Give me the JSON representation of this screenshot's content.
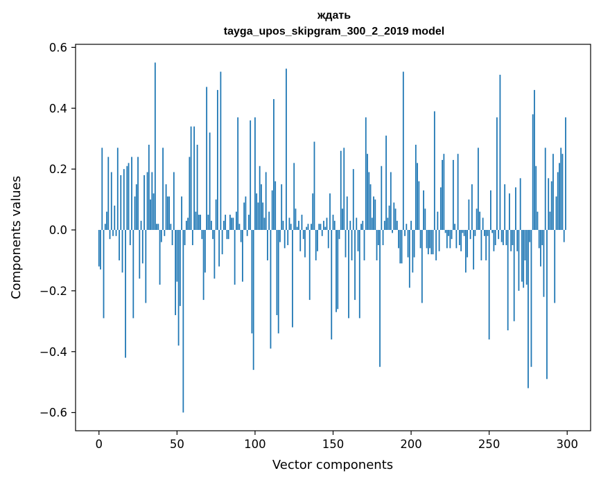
{
  "chart_data": {
    "type": "bar",
    "title_line1": "ждать",
    "title_line2": "tayga_upos_skipgram_300_2_2019 model",
    "xlabel": "Vector components",
    "ylabel": "Components values",
    "xlim": [
      -15,
      315
    ],
    "ylim": [
      -0.66,
      0.61
    ],
    "xticks": [
      0,
      50,
      100,
      150,
      200,
      250,
      300
    ],
    "yticks": [
      -0.6,
      -0.4,
      -0.2,
      0.0,
      0.2,
      0.4,
      0.6
    ],
    "ytick_labels": [
      "−0.6",
      "−0.4",
      "−0.2",
      "0.0",
      "0.2",
      "0.4",
      "0.6"
    ],
    "bar_color": "#1f77b4",
    "values": [
      -0.12,
      -0.13,
      0.27,
      -0.29,
      0.02,
      0.06,
      0.24,
      -0.03,
      0.19,
      -0.02,
      0.08,
      -0.02,
      0.27,
      -0.1,
      0.18,
      -0.14,
      0.2,
      -0.42,
      0.21,
      0.22,
      -0.05,
      0.24,
      -0.29,
      0.11,
      0.15,
      0.24,
      -0.16,
      0.03,
      -0.11,
      0.18,
      -0.24,
      0.19,
      0.28,
      0.1,
      0.19,
      0.12,
      0.55,
      0.02,
      0.02,
      -0.18,
      -0.04,
      0.27,
      -0.02,
      0.15,
      0.11,
      0.11,
      0.02,
      -0.05,
      0.19,
      -0.28,
      -0.17,
      -0.38,
      -0.25,
      0.11,
      -0.6,
      -0.05,
      0.03,
      0.04,
      0.24,
      0.34,
      -0.05,
      0.34,
      0.06,
      0.28,
      0.05,
      0.05,
      -0.03,
      -0.23,
      -0.14,
      0.47,
      0.05,
      0.32,
      0.03,
      -0.03,
      -0.16,
      0.1,
      0.46,
      -0.12,
      0.52,
      -0.08,
      0.03,
      0.05,
      -0.03,
      -0.03,
      0.05,
      0.04,
      0.04,
      -0.18,
      0.06,
      0.37,
      0.02,
      -0.04,
      -0.17,
      0.09,
      0.11,
      -0.02,
      0.05,
      0.36,
      -0.34,
      -0.46,
      0.37,
      0.12,
      0.09,
      0.21,
      0.15,
      0.09,
      0.04,
      0.19,
      -0.1,
      0.06,
      -0.39,
      0.13,
      0.43,
      0.16,
      -0.28,
      -0.34,
      -0.04,
      0.15,
      0.03,
      -0.06,
      0.53,
      -0.05,
      0.04,
      0.02,
      -0.32,
      0.22,
      0.07,
      0.01,
      0.03,
      -0.07,
      0.05,
      -0.03,
      -0.09,
      0.01,
      0.02,
      -0.23,
      0.02,
      0.12,
      0.29,
      -0.1,
      -0.07,
      0.02,
      0.02,
      -0.02,
      0.03,
      0.01,
      0.04,
      -0.06,
      0.12,
      -0.36,
      0.05,
      0.03,
      -0.27,
      -0.26,
      -0.03,
      0.26,
      0.07,
      0.27,
      -0.09,
      0.11,
      -0.29,
      0.03,
      -0.1,
      0.2,
      -0.23,
      0.04,
      -0.07,
      -0.29,
      0.02,
      0.03,
      -0.1,
      0.37,
      0.25,
      0.19,
      0.15,
      0.04,
      0.11,
      0.1,
      -0.1,
      -0.05,
      -0.45,
      0.21,
      -0.05,
      0.03,
      0.31,
      0.04,
      0.08,
      0.19,
      -0.01,
      0.09,
      0.07,
      0.03,
      -0.06,
      -0.11,
      -0.11,
      0.52,
      -0.02,
      0.02,
      -0.09,
      -0.19,
      0.03,
      -0.14,
      -0.09,
      0.28,
      0.22,
      0.16,
      -0.06,
      -0.24,
      0.13,
      0.07,
      -0.06,
      -0.08,
      -0.06,
      -0.08,
      -0.08,
      0.39,
      -0.1,
      0.06,
      -0.07,
      0.14,
      0.23,
      0.25,
      -0.01,
      -0.06,
      -0.02,
      -0.06,
      -0.03,
      0.23,
      0.02,
      -0.06,
      0.25,
      -0.05,
      -0.07,
      -0.01,
      -0.02,
      -0.14,
      -0.09,
      0.1,
      -0.03,
      0.15,
      -0.13,
      -0.02,
      0.07,
      0.27,
      0.06,
      -0.1,
      0.04,
      -0.02,
      -0.1,
      -0.02,
      -0.36,
      0.13,
      -0.01,
      -0.07,
      -0.05,
      0.37,
      -0.03,
      0.51,
      -0.04,
      -0.05,
      0.15,
      -0.05,
      -0.33,
      0.12,
      -0.07,
      -0.05,
      -0.3,
      0.14,
      -0.07,
      -0.2,
      0.17,
      -0.17,
      -0.19,
      -0.1,
      -0.18,
      -0.52,
      -0.04,
      -0.45,
      0.38,
      0.46,
      0.21,
      0.06,
      -0.06,
      -0.12,
      -0.05,
      -0.22,
      0.27,
      -0.49,
      0.17,
      0.06,
      0.16,
      0.25,
      -0.24,
      0.11,
      0.19,
      0.22,
      0.27,
      0.25,
      -0.04,
      0.37
    ]
  }
}
